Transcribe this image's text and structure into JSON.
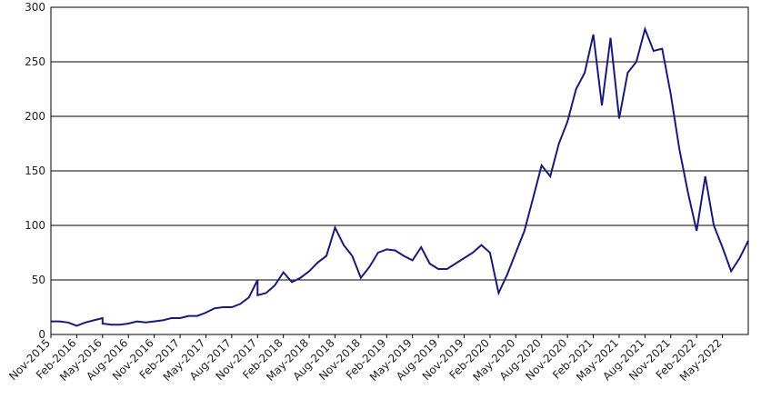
{
  "chart_data": {
    "type": "line",
    "title": "",
    "xlabel": "",
    "ylabel": "",
    "ylim": [
      0,
      300
    ],
    "y_ticks": [
      0,
      50,
      100,
      150,
      200,
      250,
      300
    ],
    "x_range": [
      "2015-11",
      "2022-08"
    ],
    "x_ticks": [
      "Nov-2015",
      "Feb-2016",
      "May-2016",
      "Aug-2016",
      "Nov-2016",
      "Feb-2017",
      "May-2017",
      "Aug-2017",
      "Nov-2017",
      "Feb-2018",
      "May-2018",
      "Aug-2018",
      "Nov-2018",
      "Feb-2019",
      "May-2019",
      "Aug-2019",
      "Nov-2019",
      "Feb-2020",
      "May-2020",
      "Aug-2020",
      "Nov-2020",
      "Feb-2021",
      "May-2021",
      "Aug-2021",
      "Nov-2021",
      "Feb-2022",
      "May-2022"
    ],
    "grid": "horizontal",
    "line_color": "#1a1a7a",
    "series": [
      {
        "points": [
          [
            "2015-11",
            12
          ],
          [
            "2015-12",
            12
          ],
          [
            "2016-01",
            11
          ],
          [
            "2016-02",
            8
          ],
          [
            "2016-03",
            11
          ],
          [
            "2016-04",
            13
          ],
          [
            "2016-05",
            15
          ],
          [
            "2016-05",
            10
          ],
          [
            "2016-06",
            9
          ],
          [
            "2016-07",
            9
          ],
          [
            "2016-08",
            10
          ],
          [
            "2016-09",
            12
          ],
          [
            "2016-10",
            11
          ],
          [
            "2016-11",
            12
          ],
          [
            "2016-12",
            13
          ],
          [
            "2017-01",
            15
          ],
          [
            "2017-02",
            15
          ],
          [
            "2017-03",
            17
          ],
          [
            "2017-04",
            17
          ],
          [
            "2017-05",
            20
          ],
          [
            "2017-06",
            24
          ],
          [
            "2017-07",
            25
          ],
          [
            "2017-08",
            25
          ],
          [
            "2017-09",
            28
          ],
          [
            "2017-10",
            34
          ],
          [
            "2017-11",
            50
          ],
          [
            "2017-11",
            36
          ],
          [
            "2017-12",
            38
          ],
          [
            "2018-01",
            45
          ],
          [
            "2018-02",
            57
          ],
          [
            "2018-03",
            48
          ],
          [
            "2018-04",
            52
          ],
          [
            "2018-05",
            58
          ],
          [
            "2018-06",
            66
          ],
          [
            "2018-07",
            72
          ],
          [
            "2018-08",
            98
          ],
          [
            "2018-09",
            82
          ],
          [
            "2018-10",
            72
          ],
          [
            "2018-11",
            52
          ],
          [
            "2018-12",
            62
          ],
          [
            "2019-01",
            75
          ],
          [
            "2019-02",
            78
          ],
          [
            "2019-03",
            77
          ],
          [
            "2019-04",
            72
          ],
          [
            "2019-05",
            68
          ],
          [
            "2019-06",
            80
          ],
          [
            "2019-07",
            65
          ],
          [
            "2019-08",
            60
          ],
          [
            "2019-09",
            60
          ],
          [
            "2019-10",
            65
          ],
          [
            "2019-11",
            70
          ],
          [
            "2019-12",
            75
          ],
          [
            "2020-01",
            82
          ],
          [
            "2020-02",
            75
          ],
          [
            "2020-03",
            38
          ],
          [
            "2020-04",
            55
          ],
          [
            "2020-05",
            75
          ],
          [
            "2020-06",
            95
          ],
          [
            "2020-07",
            125
          ],
          [
            "2020-08",
            155
          ],
          [
            "2020-09",
            145
          ],
          [
            "2020-10",
            175
          ],
          [
            "2020-11",
            195
          ],
          [
            "2020-12",
            225
          ],
          [
            "2021-01",
            240
          ],
          [
            "2021-02",
            275
          ],
          [
            "2021-03",
            210
          ],
          [
            "2021-04",
            272
          ],
          [
            "2021-05",
            198
          ],
          [
            "2021-06",
            240
          ],
          [
            "2021-07",
            250
          ],
          [
            "2021-08",
            280
          ],
          [
            "2021-09",
            260
          ],
          [
            "2021-10",
            262
          ],
          [
            "2021-11",
            220
          ],
          [
            "2021-12",
            170
          ],
          [
            "2022-01",
            130
          ],
          [
            "2022-02",
            95
          ],
          [
            "2022-03",
            145
          ],
          [
            "2022-04",
            100
          ],
          [
            "2022-05",
            80
          ],
          [
            "2022-06",
            58
          ],
          [
            "2022-07",
            70
          ],
          [
            "2022-08",
            86
          ]
        ]
      }
    ]
  }
}
